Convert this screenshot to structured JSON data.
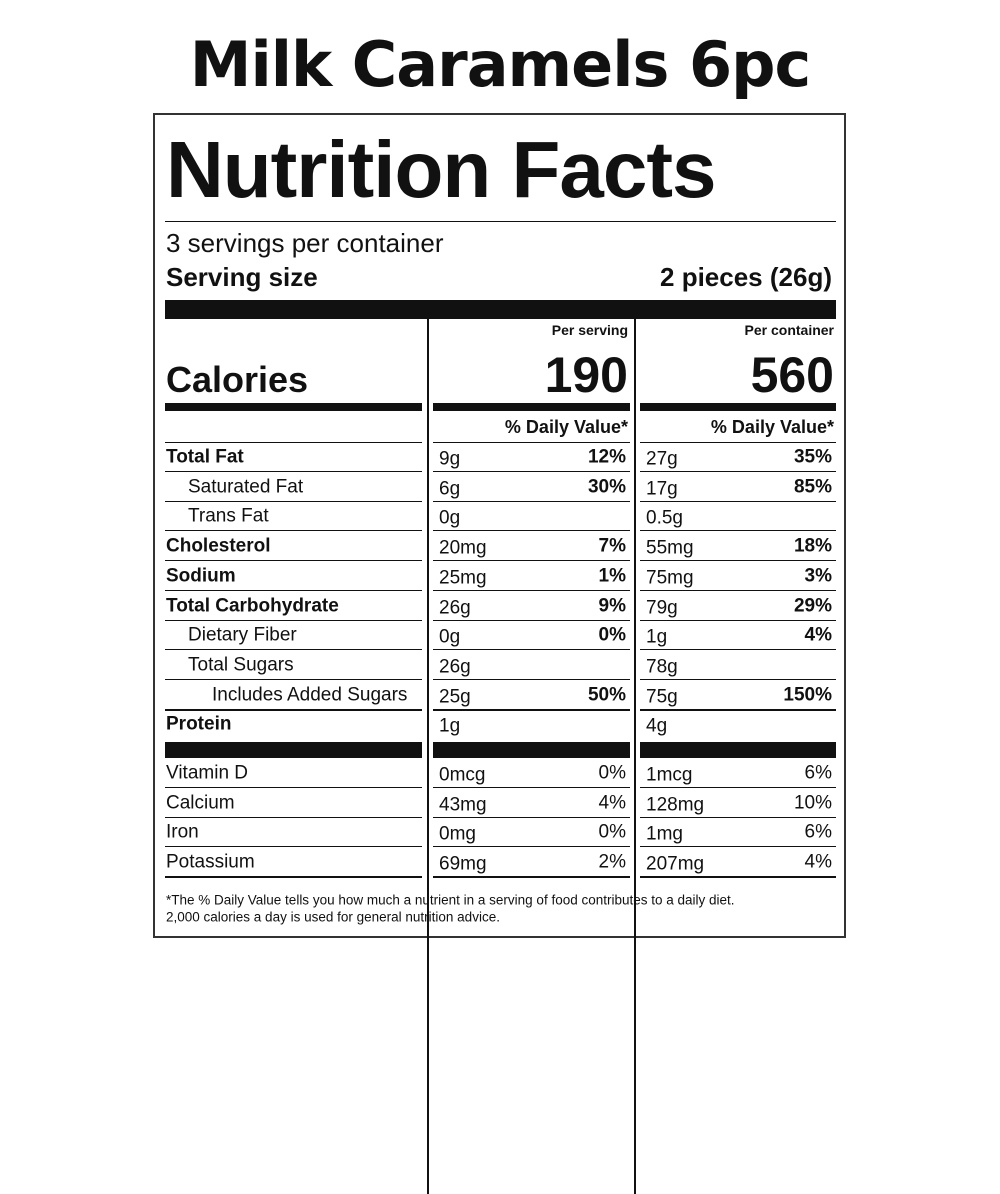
{
  "title": "Milk Caramels 6pc",
  "label": {
    "heading": "Nutrition Facts",
    "servings": "3 servings per container",
    "serving_size_label": "Serving size",
    "serving_size": "2 pieces (26g)",
    "calories_label": "Calories",
    "columns": [
      {
        "header": "Per serving",
        "calories": "190",
        "dv_header": "% Daily Value*"
      },
      {
        "header": "Per container",
        "calories": "560",
        "dv_header": "% Daily Value*"
      }
    ],
    "nutrients": [
      {
        "name": "Total Fat",
        "bold": true,
        "indent": 0,
        "amounts": [
          {
            "amount": "9g",
            "dv": "12%"
          },
          {
            "amount": "27g",
            "dv": "35%"
          }
        ]
      },
      {
        "name": "Saturated Fat",
        "bold": false,
        "indent": 1,
        "amounts": [
          {
            "amount": "6g",
            "dv": "30%"
          },
          {
            "amount": "17g",
            "dv": "85%"
          }
        ]
      },
      {
        "name": "Trans Fat",
        "bold": false,
        "indent": 1,
        "amounts": [
          {
            "amount": "0g"
          },
          {
            "amount": "0.5g"
          }
        ]
      },
      {
        "name": "Cholesterol",
        "bold": true,
        "indent": 0,
        "amounts": [
          {
            "amount": "20mg",
            "dv": "7%"
          },
          {
            "amount": "55mg",
            "dv": "18%"
          }
        ]
      },
      {
        "name": "Sodium",
        "bold": true,
        "indent": 0,
        "amounts": [
          {
            "amount": "25mg",
            "dv": "1%"
          },
          {
            "amount": "75mg",
            "dv": "3%"
          }
        ]
      },
      {
        "name": "Total Carbohydrate",
        "bold": true,
        "indent": 0,
        "amounts": [
          {
            "amount": "26g",
            "dv": "9%"
          },
          {
            "amount": "79g",
            "dv": "29%"
          }
        ]
      },
      {
        "name": "Dietary Fiber",
        "bold": false,
        "indent": 1,
        "amounts": [
          {
            "amount": "0g",
            "dv": "0%"
          },
          {
            "amount": "1g",
            "dv": "4%"
          }
        ]
      },
      {
        "name": "Total Sugars",
        "bold": false,
        "indent": 1,
        "amounts": [
          {
            "amount": "26g"
          },
          {
            "amount": "78g"
          }
        ]
      },
      {
        "name": "Includes Added Sugars",
        "bold": false,
        "indent": 2,
        "amounts": [
          {
            "amount": "25g",
            "dv": "50%"
          },
          {
            "amount": "75g",
            "dv": "150%"
          }
        ]
      },
      {
        "name": "Protein",
        "bold": true,
        "indent": 0,
        "amounts": [
          {
            "amount": "1g"
          },
          {
            "amount": "4g"
          }
        ]
      }
    ],
    "vitamins": [
      {
        "name": "Vitamin D",
        "amounts": [
          {
            "amount": "0mcg",
            "dv": "0%"
          },
          {
            "amount": "1mcg",
            "dv": "6%"
          }
        ]
      },
      {
        "name": "Calcium",
        "amounts": [
          {
            "amount": "43mg",
            "dv": "4%"
          },
          {
            "amount": "128mg",
            "dv": "10%"
          }
        ]
      },
      {
        "name": "Iron",
        "amounts": [
          {
            "amount": "0mg",
            "dv": "0%"
          },
          {
            "amount": "1mg",
            "dv": "6%"
          }
        ]
      },
      {
        "name": "Potassium",
        "amounts": [
          {
            "amount": "69mg",
            "dv": "2%"
          },
          {
            "amount": "207mg",
            "dv": "4%"
          }
        ]
      }
    ],
    "footnote": [
      "*The % Daily Value tells you how much a nutrient in a serving of food contributes to a daily diet.",
      "2,000 calories a day is used for general nutrition advice."
    ]
  }
}
